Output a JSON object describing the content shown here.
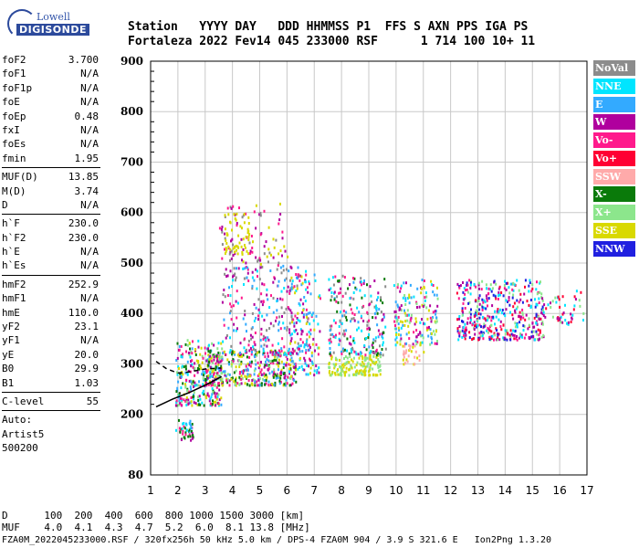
{
  "logo": {
    "top": "Lowell",
    "bottom": "DIGISONDE"
  },
  "header": {
    "labels": "Station   YYYY DAY   DDD HHMMSS P1  FFS S AXN PPS IGA PS",
    "values": "Fortaleza 2022 Fev14 045 233000 RSF      1 714 100 10+ 11"
  },
  "params": [
    [
      {
        "name": "foF2",
        "value": "3.700"
      },
      {
        "name": "foF1",
        "value": "N/A"
      },
      {
        "name": "foF1p",
        "value": "N/A"
      },
      {
        "name": "foE",
        "value": "N/A"
      },
      {
        "name": "foEp",
        "value": "0.48"
      },
      {
        "name": "fxI",
        "value": "N/A"
      },
      {
        "name": "foEs",
        "value": "N/A"
      },
      {
        "name": "fmin",
        "value": "1.95"
      }
    ],
    [
      {
        "name": "MUF(D)",
        "value": "13.85"
      },
      {
        "name": "M(D)",
        "value": "3.74"
      },
      {
        "name": "D",
        "value": "N/A"
      }
    ],
    [
      {
        "name": "h`F",
        "value": "230.0"
      },
      {
        "name": "h`F2",
        "value": "230.0"
      },
      {
        "name": "h`E",
        "value": "N/A"
      },
      {
        "name": "h`Es",
        "value": "N/A"
      }
    ],
    [
      {
        "name": "hmF2",
        "value": "252.9"
      },
      {
        "name": "hmF1",
        "value": "N/A"
      },
      {
        "name": "hmE",
        "value": "110.0"
      },
      {
        "name": "yF2",
        "value": "23.1"
      },
      {
        "name": "yF1",
        "value": "N/A"
      },
      {
        "name": "yE",
        "value": "20.0"
      },
      {
        "name": "B0",
        "value": "29.9"
      },
      {
        "name": "B1",
        "value": "1.03"
      }
    ],
    [
      {
        "name": "C-level",
        "value": "55"
      }
    ]
  ],
  "auto_lines": [
    "Auto:",
    "Artist5",
    "500200"
  ],
  "legend": [
    {
      "label": "NoVal",
      "color": "#8c8c8c"
    },
    {
      "label": "NNE",
      "color": "#00e5ff"
    },
    {
      "label": "E",
      "color": "#33aaff"
    },
    {
      "label": "W",
      "color": "#b0009e"
    },
    {
      "label": "Vo-",
      "color": "#ff1a8c"
    },
    {
      "label": "Vo+",
      "color": "#ff0033"
    },
    {
      "label": "SSW",
      "color": "#ffaaaa"
    },
    {
      "label": "X-",
      "color": "#0a7a0a"
    },
    {
      "label": "X+",
      "color": "#8ce68c"
    },
    {
      "label": "SSE",
      "color": "#d9d900"
    },
    {
      "label": "NNW",
      "color": "#2020e0"
    }
  ],
  "footer": {
    "line1": "D      100  200  400  600  800 1000 1500 3000 [km]",
    "line2": "MUF    4.0  4.1  4.3  4.7  5.2  6.0  8.1 13.8 [MHz]",
    "line3": "FZA0M_2022045233000.RSF / 320fx256h 50 kHz 5.0 km / DPS-4 FZA0M 904 / 3.9 S 321.6 E   Ion2Png 1.3.20"
  },
  "chart_data": {
    "type": "scatter",
    "xlim": [
      1,
      17
    ],
    "ylim": [
      80,
      900
    ],
    "x_ticks": [
      "1",
      "2",
      "3",
      "4",
      "5",
      "6",
      "7",
      "8",
      "9",
      "10",
      "11",
      "12",
      "13",
      "14",
      "15",
      "16",
      "17"
    ],
    "y_ticks": [
      "80",
      "200",
      "300",
      "400",
      "500",
      "600",
      "700",
      "800",
      "900"
    ],
    "y_tick_values": [
      80,
      200,
      300,
      400,
      500,
      600,
      700,
      800,
      900
    ],
    "grid": true,
    "clusters": [
      {
        "x": [
          1.9,
          2.5
        ],
        "y": [
          165,
          195
        ],
        "n": 30,
        "colors": [
          "#33aaff",
          "#00e5ff",
          "#0a7a0a",
          "#ff1a8c"
        ]
      },
      {
        "x": [
          2.1,
          2.6
        ],
        "y": [
          150,
          165
        ],
        "n": 15,
        "colors": [
          "#ff1a8c",
          "#b0009e",
          "#0a7a0a"
        ]
      },
      {
        "x": [
          1.9,
          3.6
        ],
        "y": [
          220,
          350
        ],
        "n": 300,
        "colors": [
          "#b0009e",
          "#ff1a8c",
          "#33aaff",
          "#0a7a0a",
          "#d9d900",
          "#8ce68c",
          "#00e5ff"
        ]
      },
      {
        "x": [
          3.0,
          6.3
        ],
        "y": [
          260,
          330
        ],
        "n": 400,
        "colors": [
          "#d9d900",
          "#ff1a8c",
          "#b0009e",
          "#33aaff",
          "#0a7a0a",
          "#8ce68c"
        ]
      },
      {
        "x": [
          3.6,
          6.8
        ],
        "y": [
          320,
          500
        ],
        "n": 280,
        "colors": [
          "#b0009e",
          "#ff1a8c",
          "#33aaff",
          "#00e5ff",
          "#8c8c8c"
        ]
      },
      {
        "x": [
          3.5,
          6.0
        ],
        "y": [
          500,
          620
        ],
        "n": 90,
        "colors": [
          "#d9d900",
          "#8c8c8c",
          "#ff1a8c",
          "#b0009e"
        ]
      },
      {
        "x": [
          3.6,
          4.6
        ],
        "y": [
          520,
          600
        ],
        "n": 50,
        "colors": [
          "#d9d900"
        ]
      },
      {
        "x": [
          6.0,
          7.2
        ],
        "y": [
          280,
          480
        ],
        "n": 120,
        "colors": [
          "#d9d900",
          "#33aaff",
          "#b0009e",
          "#ff1a8c",
          "#00e5ff"
        ]
      },
      {
        "x": [
          7.5,
          9.4
        ],
        "y": [
          280,
          320
        ],
        "n": 160,
        "colors": [
          "#d9d900",
          "#8ce68c"
        ]
      },
      {
        "x": [
          7.5,
          9.6
        ],
        "y": [
          320,
          480
        ],
        "n": 220,
        "colors": [
          "#33aaff",
          "#b0009e",
          "#ff1a8c",
          "#00e5ff",
          "#0a7a0a",
          "#8c8c8c"
        ]
      },
      {
        "x": [
          9.9,
          11.5
        ],
        "y": [
          340,
          470
        ],
        "n": 170,
        "colors": [
          "#33aaff",
          "#b0009e",
          "#ff1a8c",
          "#00e5ff",
          "#d9d900",
          "#8ce68c"
        ]
      },
      {
        "x": [
          10.2,
          11.0
        ],
        "y": [
          300,
          340
        ],
        "n": 30,
        "colors": [
          "#ffaaaa",
          "#d9d900"
        ]
      },
      {
        "x": [
          12.2,
          15.4
        ],
        "y": [
          350,
          470
        ],
        "n": 420,
        "colors": [
          "#2020e0",
          "#b0009e",
          "#ff0033",
          "#ff1a8c",
          "#00e5ff",
          "#8ce68c"
        ]
      },
      {
        "x": [
          15.3,
          16.9
        ],
        "y": [
          380,
          450
        ],
        "n": 50,
        "colors": [
          "#ff0033",
          "#b0009e",
          "#8ce68c",
          "#00e5ff"
        ]
      }
    ],
    "traces": [
      {
        "color": "#000",
        "dash": "5,4",
        "x": [
          1.2,
          1.6,
          2.0,
          2.4,
          3.0,
          3.6
        ],
        "y": [
          305,
          290,
          282,
          284,
          290,
          292
        ]
      },
      {
        "color": "#000",
        "dash": "",
        "x": [
          1.2,
          1.8,
          2.4,
          3.0,
          3.6
        ],
        "y": [
          215,
          230,
          243,
          258,
          275
        ]
      }
    ]
  }
}
